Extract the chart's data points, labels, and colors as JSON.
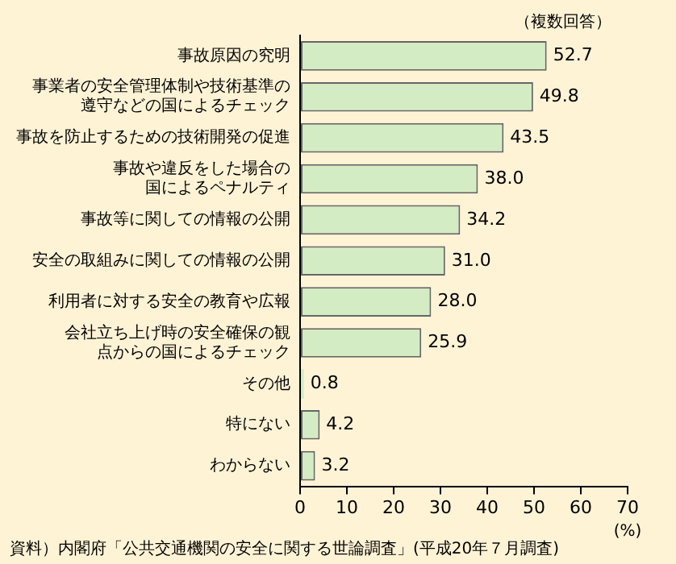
{
  "chart_data": {
    "type": "bar",
    "orientation": "horizontal",
    "categories": [
      "事故原因の究明",
      "事業者の安全管理体制や技術基準の遵守などの国によるチェック",
      "事故を防止するための技術開発の促進",
      "事故や違反をした場合の国によるペナルティ",
      "事故等に関しての情報の公開",
      "安全の取組みに関しての情報の公開",
      "利用者に対する安全の教育や広報",
      "会社立ち上げ時の安全確保の観点からの国によるチェック",
      "その他",
      "特にない",
      "わからない"
    ],
    "values": [
      52.7,
      49.8,
      43.5,
      38.0,
      34.2,
      31.0,
      28.0,
      25.9,
      0.8,
      4.2,
      3.2
    ],
    "value_labels": [
      "52.7",
      "49.8",
      "43.5",
      "38.0",
      "34.2",
      "31.0",
      "28.0",
      "25.9",
      "0.8",
      "4.2",
      "3.2"
    ],
    "color": "#d4ecc4",
    "xlabel": "(%)",
    "xlim": [
      0,
      70
    ],
    "xticks": [
      0,
      10,
      20,
      30,
      40,
      50,
      60,
      70
    ],
    "grid": false,
    "legend": false,
    "annotations": [
      "（複数回答）",
      "資料）内閣府「公共交通機関の安全に関する世論調査」(平成20年７月調査)"
    ]
  }
}
